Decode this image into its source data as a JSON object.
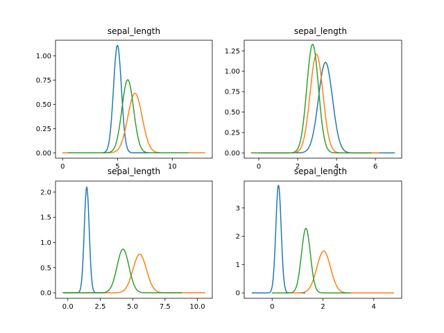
{
  "chart_data": [
    {
      "type": "line",
      "title": "sepal_length",
      "xlabel": "",
      "ylabel": "",
      "xlim": [
        -0.65,
        13.65
      ],
      "ylim": [
        -0.055,
        1.16
      ],
      "xticks": [
        0,
        5,
        10
      ],
      "xtick_labels": [
        "0",
        "5",
        "10"
      ],
      "yticks": [
        0,
        0.25,
        0.5,
        0.75,
        1.0
      ],
      "ytick_labels": [
        "0.00",
        "0.25",
        "0.50",
        "0.75",
        "1.00"
      ],
      "grid": false,
      "series": [
        {
          "color": "#1f77b4",
          "x_range": [
            0.0,
            11.3
          ],
          "mean": 5.0,
          "sd": 0.36
        },
        {
          "color": "#ff7f0e",
          "x_range": [
            0.0,
            13.0
          ],
          "mean": 6.6,
          "sd": 0.65
        },
        {
          "color": "#2ca02c",
          "x_range": [
            0.5,
            11.5
          ],
          "mean": 5.94,
          "sd": 0.53
        }
      ]
    },
    {
      "type": "line",
      "title": "sepal_length",
      "xlabel": "",
      "ylabel": "",
      "xlim": [
        -0.75,
        7.35
      ],
      "ylim": [
        -0.065,
        1.38
      ],
      "xticks": [
        0,
        2,
        4,
        6
      ],
      "xtick_labels": [
        "0",
        "2",
        "4",
        "6"
      ],
      "yticks": [
        0,
        0.25,
        0.5,
        0.75,
        1.0,
        1.25
      ],
      "ytick_labels": [
        "0.00",
        "0.25",
        "0.50",
        "0.75",
        "1.00",
        "1.25"
      ],
      "grid": false,
      "series": [
        {
          "color": "#1f77b4",
          "x_range": [
            0.0,
            7.0
          ],
          "mean": 3.43,
          "sd": 0.36
        },
        {
          "color": "#ff7f0e",
          "x_range": [
            0.0,
            6.2
          ],
          "mean": 2.97,
          "sd": 0.33
        },
        {
          "color": "#2ca02c",
          "x_range": [
            -0.4,
            5.8
          ],
          "mean": 2.77,
          "sd": 0.3
        }
      ]
    },
    {
      "type": "line",
      "title": "sepal_length",
      "xlabel": "",
      "ylabel": "",
      "xlim": [
        -0.95,
        11.15
      ],
      "ylim": [
        -0.11,
        2.22
      ],
      "xticks": [
        0,
        2.5,
        5,
        7.5,
        10
      ],
      "xtick_labels": [
        "0.0",
        "2.5",
        "5.0",
        "7.5",
        "10.0"
      ],
      "yticks": [
        0,
        0.5,
        1.0,
        1.5,
        2.0
      ],
      "ytick_labels": [
        "0.0",
        "0.5",
        "1.0",
        "1.5",
        "2.0"
      ],
      "grid": false,
      "series": [
        {
          "color": "#1f77b4",
          "x_range": [
            -0.4,
            3.0
          ],
          "mean": 1.46,
          "sd": 0.19
        },
        {
          "color": "#ff7f0e",
          "x_range": [
            0.0,
            10.6
          ],
          "mean": 5.55,
          "sd": 0.52
        },
        {
          "color": "#2ca02c",
          "x_range": [
            -0.3,
            8.8
          ],
          "mean": 4.26,
          "sd": 0.46
        }
      ]
    },
    {
      "type": "line",
      "title": "sepal_length",
      "xlabel": "",
      "ylabel": "",
      "xlim": [
        -1.1,
        5.1
      ],
      "ylim": [
        -0.19,
        3.95
      ],
      "xticks": [
        0,
        2,
        4
      ],
      "xtick_labels": [
        "0",
        "2",
        "4"
      ],
      "yticks": [
        0,
        1,
        2,
        3
      ],
      "ytick_labels": [
        "0",
        "1",
        "2",
        "3"
      ],
      "grid": false,
      "series": [
        {
          "color": "#1f77b4",
          "x_range": [
            -0.8,
            1.3
          ],
          "mean": 0.25,
          "sd": 0.105
        },
        {
          "color": "#ff7f0e",
          "x_range": [
            0.0,
            4.8
          ],
          "mean": 2.03,
          "sd": 0.27
        },
        {
          "color": "#2ca02c",
          "x_range": [
            0.0,
            3.1
          ],
          "mean": 1.33,
          "sd": 0.175
        }
      ]
    }
  ]
}
